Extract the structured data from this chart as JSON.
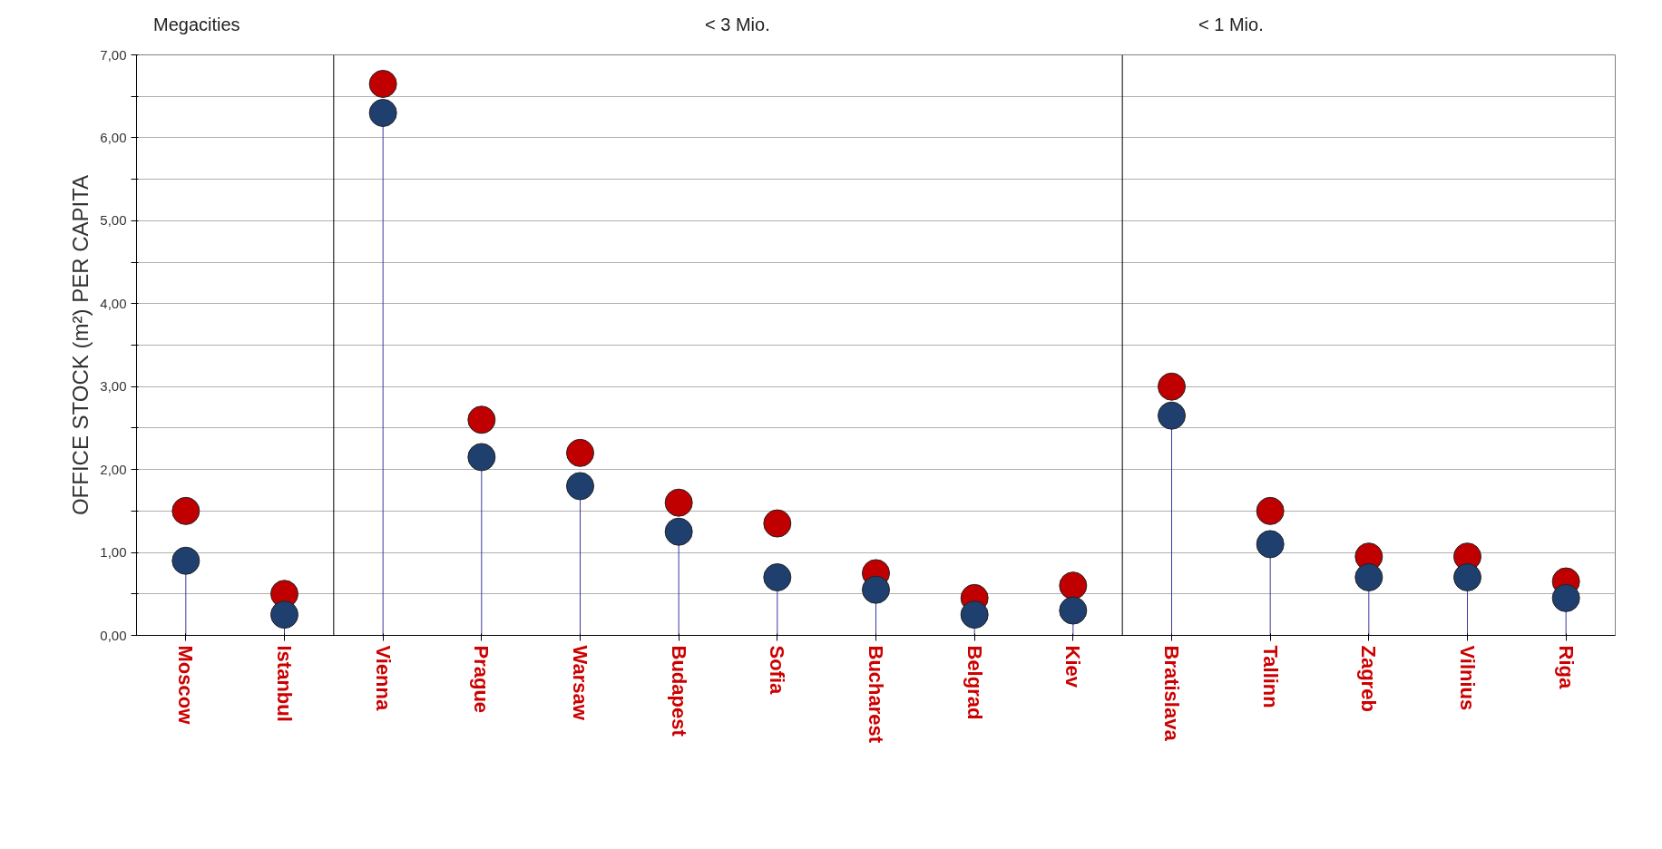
{
  "chart_data": {
    "type": "lollipop",
    "categories": [
      "Moscow",
      "Istanbul",
      "Vienna",
      "Prague",
      "Warsaw",
      "Budapest",
      "Sofia",
      "Bucharest",
      "Belgrad",
      "Kiev",
      "Bratislava",
      "Tallinn",
      "Zagreb",
      "Vilnius",
      "Riga"
    ],
    "series": [
      {
        "color": "#c00000",
        "values": [
          1.5,
          0.5,
          6.65,
          2.6,
          2.2,
          1.6,
          1.35,
          0.75,
          0.45,
          0.6,
          3.0,
          1.5,
          0.95,
          0.95,
          0.65
        ]
      },
      {
        "color": "#1f3f6e",
        "values": [
          0.9,
          0.25,
          6.3,
          2.15,
          1.8,
          1.25,
          0.7,
          0.55,
          0.25,
          0.3,
          2.65,
          1.1,
          0.7,
          0.7,
          0.45
        ]
      }
    ],
    "ylabel": "OFFICE STOCK (m²) PER CAPITA",
    "ylim": [
      0,
      7
    ],
    "yticks": [
      {
        "value": 0,
        "label": "0,00"
      },
      {
        "value": 0.5,
        "label": null
      },
      {
        "value": 1,
        "label": "1,00"
      },
      {
        "value": 1.5,
        "label": null
      },
      {
        "value": 2,
        "label": "2,00"
      },
      {
        "value": 2.5,
        "label": null
      },
      {
        "value": 3,
        "label": "3,00"
      },
      {
        "value": 3.5,
        "label": null
      },
      {
        "value": 4,
        "label": "4,00"
      },
      {
        "value": 4.5,
        "label": null
      },
      {
        "value": 5,
        "label": "5,00"
      },
      {
        "value": 5.5,
        "label": null
      },
      {
        "value": 6,
        "label": "6,00"
      },
      {
        "value": 6.5,
        "label": null
      },
      {
        "value": 7,
        "label": "7,00"
      }
    ],
    "grid": "y",
    "marker": "circle",
    "annotations": [
      "Megacities",
      "< 3 Mio.",
      "< 1 Mio."
    ]
  }
}
